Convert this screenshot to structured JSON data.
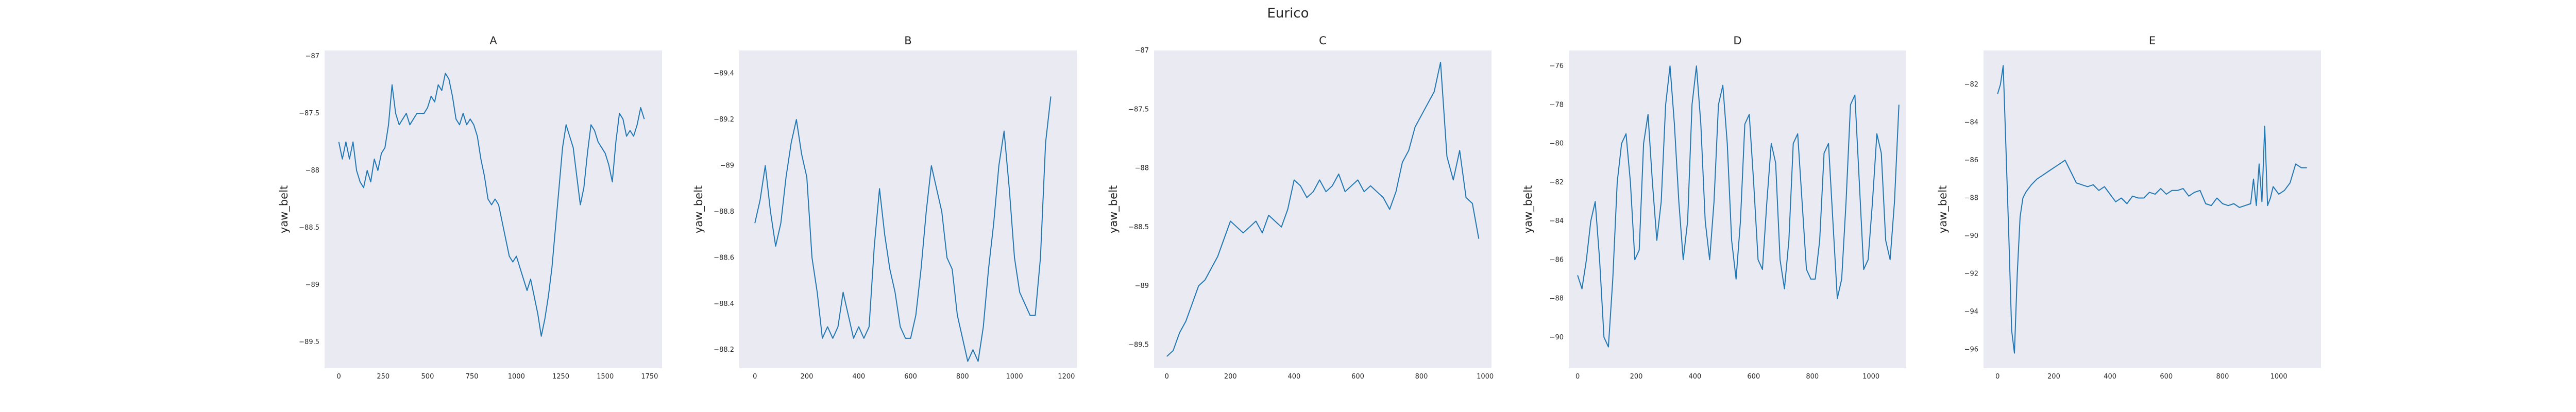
{
  "figure": {
    "title": "Eurico"
  },
  "chart_data": [
    {
      "type": "line",
      "title": "A",
      "xlabel": "",
      "ylabel": "yaw_belt",
      "xlim": [
        -80,
        1820
      ],
      "ylim": [
        -89.73,
        -86.95
      ],
      "xticks": [
        0,
        250,
        500,
        750,
        1000,
        1250,
        1500,
        1750
      ],
      "yticks": [
        -87.0,
        -87.5,
        -88.0,
        -88.5,
        -89.0,
        -89.5
      ],
      "grid": false,
      "color": "#1f77b4",
      "series": [
        {
          "x": [
            0,
            20,
            40,
            60,
            80,
            100,
            120,
            140,
            160,
            180,
            200,
            220,
            240,
            260,
            280,
            300,
            320,
            340,
            360,
            380,
            400,
            420,
            440,
            460,
            480,
            500,
            520,
            540,
            560,
            580,
            600,
            620,
            640,
            660,
            680,
            700,
            720,
            740,
            760,
            780,
            800,
            820,
            840,
            860,
            880,
            900,
            920,
            940,
            960,
            980,
            1000,
            1020,
            1040,
            1060,
            1080,
            1100,
            1120,
            1140,
            1160,
            1180,
            1200,
            1220,
            1240,
            1260,
            1280,
            1300,
            1320,
            1340,
            1360,
            1380,
            1400,
            1420,
            1440,
            1460,
            1480,
            1500,
            1520,
            1540,
            1560,
            1580,
            1600,
            1620,
            1640,
            1660,
            1680,
            1700,
            1720
          ],
          "y": [
            -87.75,
            -87.9,
            -87.75,
            -87.9,
            -87.75,
            -88.0,
            -88.1,
            -88.15,
            -88.0,
            -88.1,
            -87.9,
            -88.0,
            -87.85,
            -87.8,
            -87.6,
            -87.25,
            -87.5,
            -87.6,
            -87.55,
            -87.5,
            -87.6,
            -87.55,
            -87.5,
            -87.5,
            -87.5,
            -87.45,
            -87.35,
            -87.4,
            -87.25,
            -87.3,
            -87.15,
            -87.2,
            -87.35,
            -87.55,
            -87.6,
            -87.5,
            -87.6,
            -87.55,
            -87.6,
            -87.7,
            -87.9,
            -88.05,
            -88.25,
            -88.3,
            -88.25,
            -88.3,
            -88.45,
            -88.6,
            -88.75,
            -88.8,
            -88.75,
            -88.85,
            -88.95,
            -89.05,
            -88.95,
            -89.1,
            -89.25,
            -89.45,
            -89.3,
            -89.1,
            -88.85,
            -88.5,
            -88.15,
            -87.8,
            -87.6,
            -87.7,
            -87.8,
            -88.05,
            -88.3,
            -88.15,
            -87.85,
            -87.6,
            -87.65,
            -87.75,
            -87.8,
            -87.85,
            -87.95,
            -88.1,
            -87.75,
            -87.5,
            -87.55,
            -87.7,
            -87.65,
            -87.7,
            -87.6,
            -87.45,
            -87.55
          ]
        }
      ]
    },
    {
      "type": "line",
      "title": "B",
      "xlabel": "",
      "ylabel": "yaw_belt",
      "xlim": [
        -60,
        1240
      ],
      "ylim": [
        -88.12,
        -89.5
      ],
      "xticks": [
        0,
        200,
        400,
        600,
        800,
        1000,
        1200
      ],
      "yticks": [
        -88.2,
        -88.4,
        -88.6,
        -88.8,
        -89.0,
        -89.2,
        -89.4
      ],
      "grid": false,
      "color": "#1f77b4",
      "series": [
        {
          "x": [
            0,
            20,
            40,
            60,
            80,
            100,
            120,
            140,
            160,
            180,
            200,
            220,
            240,
            260,
            280,
            300,
            320,
            340,
            360,
            380,
            400,
            420,
            440,
            460,
            480,
            500,
            520,
            540,
            560,
            580,
            600,
            620,
            640,
            660,
            680,
            700,
            720,
            740,
            760,
            780,
            800,
            820,
            840,
            860,
            880,
            900,
            920,
            940,
            960,
            980,
            1000,
            1020,
            1040,
            1060,
            1080,
            1100,
            1120,
            1140
          ],
          "y": [
            -88.75,
            -88.85,
            -89.0,
            -88.8,
            -88.65,
            -88.75,
            -88.95,
            -89.1,
            -89.2,
            -89.05,
            -88.95,
            -88.6,
            -88.45,
            -88.25,
            -88.3,
            -88.25,
            -88.3,
            -88.45,
            -88.35,
            -88.25,
            -88.3,
            -88.25,
            -88.3,
            -88.65,
            -88.9,
            -88.7,
            -88.55,
            -88.45,
            -88.3,
            -88.25,
            -88.25,
            -88.35,
            -88.55,
            -88.8,
            -89.0,
            -88.9,
            -88.8,
            -88.6,
            -88.55,
            -88.35,
            -88.25,
            -88.15,
            -88.2,
            -88.15,
            -88.3,
            -88.55,
            -88.75,
            -89.0,
            -89.15,
            -88.9,
            -88.6,
            -88.45,
            -88.4,
            -88.35,
            -88.35,
            -88.6,
            -89.1,
            -89.3
          ]
        }
      ]
    },
    {
      "type": "line",
      "title": "C",
      "xlabel": "",
      "ylabel": "yaw_belt",
      "xlim": [
        -40,
        1020
      ],
      "ylim": [
        -89.7,
        -87.0
      ],
      "xticks": [
        0,
        200,
        400,
        600,
        800,
        1000
      ],
      "yticks": [
        -87.0,
        -87.5,
        -88.0,
        -88.5,
        -89.0,
        -89.5
      ],
      "grid": false,
      "color": "#1f77b4",
      "series": [
        {
          "x": [
            0,
            20,
            40,
            60,
            80,
            100,
            120,
            140,
            160,
            180,
            200,
            220,
            240,
            260,
            280,
            300,
            320,
            340,
            360,
            380,
            400,
            420,
            440,
            460,
            480,
            500,
            520,
            540,
            560,
            580,
            600,
            620,
            640,
            660,
            680,
            700,
            720,
            740,
            760,
            780,
            800,
            820,
            840,
            860,
            880,
            900,
            920,
            940,
            960,
            980
          ],
          "y": [
            -89.6,
            -89.55,
            -89.4,
            -89.3,
            -89.15,
            -89.0,
            -88.95,
            -88.85,
            -88.75,
            -88.6,
            -88.45,
            -88.5,
            -88.55,
            -88.5,
            -88.45,
            -88.55,
            -88.4,
            -88.45,
            -88.5,
            -88.35,
            -88.1,
            -88.15,
            -88.25,
            -88.2,
            -88.1,
            -88.2,
            -88.15,
            -88.05,
            -88.2,
            -88.15,
            -88.1,
            -88.2,
            -88.15,
            -88.2,
            -88.25,
            -88.35,
            -88.2,
            -87.95,
            -87.85,
            -87.65,
            -87.55,
            -87.45,
            -87.35,
            -87.1,
            -87.9,
            -88.1,
            -87.85,
            -88.25,
            -88.3,
            -88.6
          ]
        }
      ]
    },
    {
      "type": "line",
      "title": "D",
      "xlabel": "",
      "ylabel": "yaw_belt",
      "xlim": [
        -30,
        1120
      ],
      "ylim": [
        -91.6,
        -75.2
      ],
      "xticks": [
        0,
        200,
        400,
        600,
        800,
        1000
      ],
      "yticks": [
        -76,
        -78,
        -80,
        -82,
        -84,
        -86,
        -88,
        -90
      ],
      "grid": false,
      "color": "#1f77b4",
      "series": [
        {
          "x": [
            0,
            15,
            30,
            45,
            60,
            75,
            90,
            105,
            120,
            135,
            150,
            165,
            180,
            195,
            210,
            225,
            240,
            255,
            270,
            285,
            300,
            315,
            330,
            345,
            360,
            375,
            390,
            405,
            420,
            435,
            450,
            465,
            480,
            495,
            510,
            525,
            540,
            555,
            570,
            585,
            600,
            615,
            630,
            645,
            660,
            675,
            690,
            705,
            720,
            735,
            750,
            765,
            780,
            795,
            810,
            825,
            840,
            855,
            870,
            885,
            900,
            915,
            930,
            945,
            960,
            975,
            990,
            1005,
            1020,
            1035,
            1050,
            1065,
            1080,
            1095
          ],
          "y": [
            -86.8,
            -87.5,
            -86.0,
            -84.0,
            -83.0,
            -86.0,
            -90.0,
            -90.5,
            -87.0,
            -82.0,
            -80.0,
            -79.5,
            -82.0,
            -86.0,
            -85.5,
            -80.0,
            -78.5,
            -82.0,
            -85.0,
            -83.0,
            -78.0,
            -76.0,
            -79.0,
            -83.0,
            -86.0,
            -84.0,
            -78.0,
            -76.0,
            -79.0,
            -84.0,
            -86.0,
            -83.0,
            -78.0,
            -77.0,
            -80.0,
            -85.0,
            -87.0,
            -84.0,
            -79.0,
            -78.5,
            -82.0,
            -86.0,
            -86.5,
            -83.0,
            -80.0,
            -81.0,
            -86.0,
            -87.5,
            -85.0,
            -80.0,
            -79.5,
            -83.0,
            -86.5,
            -87.0,
            -87.0,
            -85.0,
            -80.5,
            -80.0,
            -84.0,
            -88.0,
            -87.0,
            -83.0,
            -78.0,
            -77.5,
            -82.0,
            -86.5,
            -86.0,
            -83.0,
            -79.5,
            -80.5,
            -85.0,
            -86.0,
            -83.0,
            -78.0
          ]
        }
      ]
    },
    {
      "type": "line",
      "title": "E",
      "xlabel": "",
      "ylabel": "yaw_belt",
      "xlim": [
        -50,
        1150
      ],
      "ylim": [
        -97.0,
        -80.2
      ],
      "xticks": [
        0,
        200,
        400,
        600,
        800,
        1000
      ],
      "yticks": [
        -82,
        -84,
        -86,
        -88,
        -90,
        -92,
        -94,
        -96
      ],
      "grid": false,
      "color": "#1f77b4",
      "series": [
        {
          "x": [
            0,
            10,
            20,
            30,
            40,
            50,
            60,
            70,
            80,
            90,
            100,
            110,
            120,
            140,
            160,
            180,
            200,
            220,
            240,
            260,
            280,
            300,
            320,
            340,
            360,
            380,
            400,
            420,
            440,
            460,
            480,
            500,
            520,
            540,
            560,
            580,
            600,
            620,
            640,
            660,
            680,
            700,
            720,
            740,
            760,
            780,
            800,
            820,
            840,
            860,
            880,
            900,
            910,
            920,
            930,
            940,
            950,
            960,
            970,
            980,
            1000,
            1020,
            1040,
            1060,
            1080,
            1100
          ],
          "y": [
            -82.5,
            -82.0,
            -81.0,
            -85.5,
            -90.0,
            -95.0,
            -96.2,
            -92.0,
            -89.0,
            -88.0,
            -87.7,
            -87.5,
            -87.3,
            -87.0,
            -86.8,
            -86.6,
            -86.4,
            -86.2,
            -86.0,
            -86.6,
            -87.2,
            -87.3,
            -87.4,
            -87.3,
            -87.6,
            -87.4,
            -87.8,
            -88.2,
            -88.0,
            -88.3,
            -87.9,
            -88.0,
            -88.0,
            -87.7,
            -87.8,
            -87.5,
            -87.8,
            -87.6,
            -87.6,
            -87.5,
            -87.9,
            -87.7,
            -87.6,
            -88.3,
            -88.4,
            -88.0,
            -88.3,
            -88.4,
            -88.3,
            -88.5,
            -88.4,
            -88.3,
            -87.0,
            -88.4,
            -86.2,
            -88.2,
            -84.2,
            -88.4,
            -88.0,
            -87.4,
            -87.8,
            -87.6,
            -87.2,
            -86.2,
            -86.4,
            -86.4
          ]
        }
      ]
    }
  ]
}
